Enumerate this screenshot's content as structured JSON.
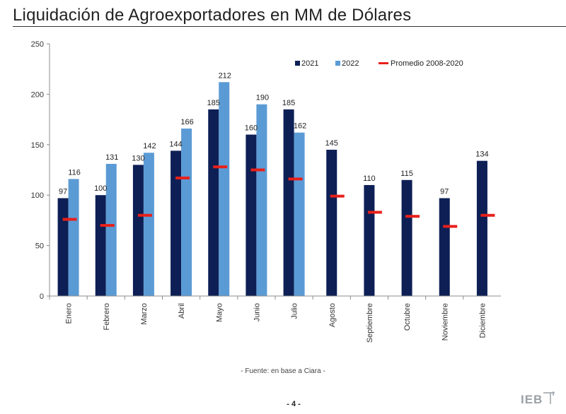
{
  "title": "Liquidación de Agroexportadores en MM de Dólares",
  "source": "- Fuente: en base a Ciara -",
  "page_number": "- 4 -",
  "logo": "IEB",
  "colors": {
    "s2021": "#0d1f55",
    "s2022": "#5b9bd5",
    "avg": "#e8201a",
    "axis": "#8c8c8c"
  },
  "chart_data": {
    "type": "bar",
    "title": "Liquidación de Agroexportadores en MM de Dólares",
    "xlabel": "",
    "ylabel": "",
    "ylim": [
      0,
      250
    ],
    "yticks": [
      0,
      50,
      100,
      150,
      200,
      250
    ],
    "legend_position": "top-right",
    "categories": [
      "Enero",
      "Febrero",
      "Marzo",
      "Abril",
      "Mayo",
      "Junio",
      "Julio",
      "Agosto",
      "Septiembre",
      "Octubre",
      "Noviembre",
      "Diciembre"
    ],
    "series": [
      {
        "name": "2021",
        "type": "bar",
        "values": [
          97,
          100,
          130,
          144,
          185,
          160,
          185,
          145,
          110,
          115,
          97,
          134
        ]
      },
      {
        "name": "2022",
        "type": "bar",
        "values": [
          116,
          131,
          142,
          166,
          212,
          190,
          162,
          null,
          null,
          null,
          null,
          null
        ]
      },
      {
        "name": "Promedio 2008-2020",
        "type": "marker",
        "values": [
          76,
          70,
          80,
          117,
          128,
          125,
          116,
          99,
          83,
          79,
          69,
          80
        ]
      }
    ]
  }
}
